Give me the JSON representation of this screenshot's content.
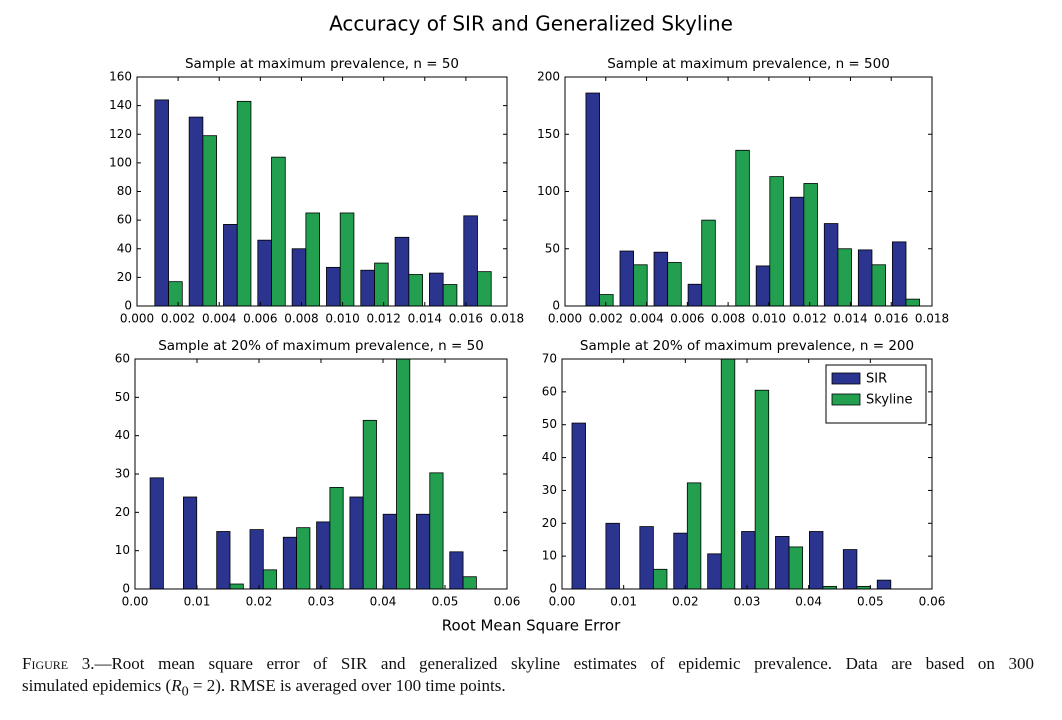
{
  "figure": {
    "title": "Accuracy of SIR and Generalized Skyline",
    "xlabel": "Root Mean Square Error"
  },
  "caption": {
    "label": "Figure 3.",
    "line1": "—Root mean square error of SIR and generalized skyline estimates of epidemic prevalence. Data are based on 300",
    "line2_start": "simulated epidemics (",
    "r": "R",
    "sub": "0",
    "line2_end": " = 2). RMSE is averaged over 100 time points."
  },
  "chart_data": [
    {
      "type": "histogram",
      "title": "Sample at maximum prevalence, n = 50",
      "bins": [
        0.0007,
        0.00237,
        0.00404,
        0.00571,
        0.00738,
        0.00905,
        0.01072,
        0.01239,
        0.01406,
        0.01573,
        0.0174
      ],
      "series": [
        {
          "name": "SIR",
          "color": "#2b3590",
          "values": [
            144,
            132,
            57,
            46,
            40,
            27,
            25,
            48,
            23,
            63
          ]
        },
        {
          "name": "Skyline",
          "color": "#22a04f",
          "values": [
            17,
            119,
            143,
            104,
            65,
            65,
            30,
            22,
            15,
            24
          ]
        }
      ],
      "xlim": [
        0,
        0.018
      ],
      "xticks": [
        {
          "value": 0,
          "label": "0.000"
        },
        {
          "value": 0.002,
          "label": "0.002"
        },
        {
          "value": 0.004,
          "label": "0.004"
        },
        {
          "value": 0.006,
          "label": "0.006"
        },
        {
          "value": 0.008,
          "label": "0.008"
        },
        {
          "value": 0.01,
          "label": "0.010"
        },
        {
          "value": 0.012,
          "label": "0.012"
        },
        {
          "value": 0.014,
          "label": "0.014"
        },
        {
          "value": 0.016,
          "label": "0.016"
        },
        {
          "value": 0.018,
          "label": "0.018"
        }
      ],
      "ylim": [
        0,
        160
      ],
      "yticks": [
        0,
        20,
        40,
        60,
        80,
        100,
        120,
        140,
        160
      ]
    },
    {
      "type": "histogram",
      "title": "Sample at maximum prevalence, n = 500",
      "bins": [
        0.00086,
        0.00253,
        0.0042,
        0.00587,
        0.00754,
        0.00921,
        0.01088,
        0.01255,
        0.01422,
        0.01589,
        0.01756
      ],
      "series": [
        {
          "name": "SIR",
          "color": "#2b3590",
          "values": [
            186,
            48,
            47,
            19,
            0,
            35,
            95,
            72,
            49,
            56
          ]
        },
        {
          "name": "Skyline",
          "color": "#22a04f",
          "values": [
            10,
            36,
            38,
            75,
            136,
            113,
            107,
            50,
            36,
            6
          ]
        }
      ],
      "xlim": [
        0,
        0.018
      ],
      "xticks": [
        {
          "value": 0,
          "label": "0.000"
        },
        {
          "value": 0.002,
          "label": "0.002"
        },
        {
          "value": 0.004,
          "label": "0.004"
        },
        {
          "value": 0.006,
          "label": "0.006"
        },
        {
          "value": 0.008,
          "label": "0.008"
        },
        {
          "value": 0.01,
          "label": "0.010"
        },
        {
          "value": 0.012,
          "label": "0.012"
        },
        {
          "value": 0.014,
          "label": "0.014"
        },
        {
          "value": 0.016,
          "label": "0.016"
        },
        {
          "value": 0.018,
          "label": "0.018"
        }
      ],
      "ylim": [
        0,
        200
      ],
      "yticks": [
        0,
        50,
        100,
        150,
        200
      ]
    },
    {
      "type": "histogram",
      "title": "Sample at 20% of maximum prevalence, n = 50",
      "bins": [
        0.0019,
        0.00727,
        0.01264,
        0.01801,
        0.02338,
        0.02875,
        0.03412,
        0.03949,
        0.04486,
        0.05023,
        0.0556
      ],
      "series": [
        {
          "name": "SIR",
          "color": "#2b3590",
          "values": [
            29,
            24,
            15,
            15.5,
            13.5,
            17.5,
            24,
            19.5,
            19.5,
            9.7
          ]
        },
        {
          "name": "Skyline",
          "color": "#22a04f",
          "values": [
            0,
            0,
            1.3,
            5,
            16,
            26.5,
            44,
            60,
            30.3,
            3.2
          ]
        }
      ],
      "xlim": [
        0,
        0.06
      ],
      "xticks": [
        {
          "value": 0,
          "label": "0.00"
        },
        {
          "value": 0.01,
          "label": "0.01"
        },
        {
          "value": 0.02,
          "label": "0.02"
        },
        {
          "value": 0.03,
          "label": "0.03"
        },
        {
          "value": 0.04,
          "label": "0.04"
        },
        {
          "value": 0.05,
          "label": "0.05"
        },
        {
          "value": 0.06,
          "label": "0.06"
        }
      ],
      "ylim": [
        0,
        60
      ],
      "yticks": [
        0,
        10,
        20,
        30,
        40,
        50,
        60
      ]
    },
    {
      "type": "histogram",
      "title": "Sample at 20% of maximum prevalence, n = 200",
      "bins": [
        0.00107,
        0.00657,
        0.01207,
        0.01757,
        0.02307,
        0.02857,
        0.03407,
        0.03957,
        0.04507,
        0.05057,
        0.05607
      ],
      "series": [
        {
          "name": "SIR",
          "color": "#2b3590",
          "values": [
            50.5,
            20,
            19,
            17,
            10.7,
            17.5,
            16,
            17.5,
            12,
            2.7
          ]
        },
        {
          "name": "Skyline",
          "color": "#22a04f",
          "values": [
            0,
            0,
            6,
            32.3,
            70,
            60.5,
            12.8,
            0.8,
            0.8,
            0
          ]
        }
      ],
      "xlim": [
        0,
        0.06
      ],
      "xticks": [
        {
          "value": 0,
          "label": "0.00"
        },
        {
          "value": 0.01,
          "label": "0.01"
        },
        {
          "value": 0.02,
          "label": "0.02"
        },
        {
          "value": 0.03,
          "label": "0.03"
        },
        {
          "value": 0.04,
          "label": "0.04"
        },
        {
          "value": 0.05,
          "label": "0.05"
        },
        {
          "value": 0.06,
          "label": "0.06"
        }
      ],
      "ylim": [
        0,
        70
      ],
      "yticks": [
        0,
        10,
        20,
        30,
        40,
        50,
        60,
        70
      ],
      "legend": "upper right"
    }
  ]
}
